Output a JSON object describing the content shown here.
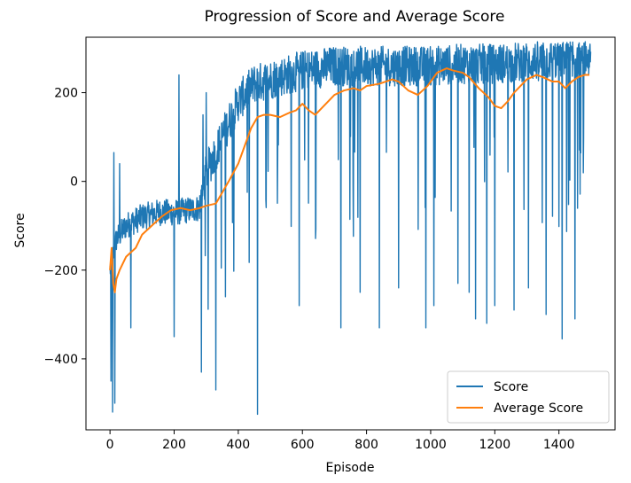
{
  "chart_data": {
    "type": "line",
    "title": "Progression of Score and Average Score",
    "xlabel": "Episode",
    "ylabel": "Score",
    "xlim": [
      -75,
      1575
    ],
    "ylim": [
      -560,
      325
    ],
    "xticks": [
      0,
      200,
      400,
      600,
      800,
      1000,
      1200,
      1400
    ],
    "yticks": [
      -400,
      -200,
      0,
      200
    ],
    "legend_placement": "lower-right",
    "grid": false,
    "episodes": 1500,
    "series": [
      {
        "name": "Score",
        "color": "#1f77b4",
        "kind": "noisy-episode-scores",
        "trend_points": [
          [
            0,
            -200
          ],
          [
            20,
            -130
          ],
          [
            50,
            -100
          ],
          [
            100,
            -80
          ],
          [
            150,
            -70
          ],
          [
            200,
            -70
          ],
          [
            280,
            -60
          ],
          [
            300,
            20
          ],
          [
            350,
            100
          ],
          [
            400,
            180
          ],
          [
            450,
            220
          ],
          [
            500,
            230
          ],
          [
            600,
            250
          ],
          [
            700,
            260
          ],
          [
            800,
            260
          ],
          [
            900,
            260
          ],
          [
            1000,
            260
          ],
          [
            1100,
            265
          ],
          [
            1200,
            265
          ],
          [
            1300,
            270
          ],
          [
            1400,
            275
          ],
          [
            1500,
            280
          ]
        ],
        "dips": [
          [
            3,
            -450
          ],
          [
            8,
            -520
          ],
          [
            12,
            -540
          ],
          [
            15,
            -500
          ],
          [
            30,
            -300
          ],
          [
            65,
            -330
          ],
          [
            200,
            -350
          ],
          [
            215,
            -395
          ],
          [
            285,
            -430
          ],
          [
            300,
            -410
          ],
          [
            330,
            -470
          ],
          [
            360,
            -260
          ],
          [
            460,
            -525
          ],
          [
            590,
            -280
          ],
          [
            720,
            -330
          ],
          [
            780,
            -250
          ],
          [
            840,
            -330
          ],
          [
            900,
            -240
          ],
          [
            985,
            -330
          ],
          [
            1010,
            -280
          ],
          [
            1085,
            -230
          ],
          [
            1120,
            -250
          ],
          [
            1140,
            -310
          ],
          [
            1175,
            -320
          ],
          [
            1200,
            -280
          ],
          [
            1260,
            -290
          ],
          [
            1305,
            -240
          ],
          [
            1360,
            -300
          ],
          [
            1410,
            -355
          ],
          [
            1450,
            -310
          ]
        ],
        "spikes": [
          [
            12,
            65
          ],
          [
            30,
            40
          ],
          [
            215,
            240
          ],
          [
            290,
            150
          ],
          [
            300,
            200
          ]
        ]
      },
      {
        "name": "Average Score",
        "color": "#ff7f0e",
        "x": [
          0,
          5,
          10,
          15,
          20,
          30,
          50,
          80,
          100,
          130,
          160,
          190,
          220,
          250,
          280,
          300,
          330,
          350,
          370,
          400,
          420,
          440,
          460,
          480,
          500,
          530,
          560,
          580,
          600,
          620,
          640,
          660,
          680,
          700,
          730,
          760,
          780,
          800,
          840,
          880,
          900,
          930,
          960,
          990,
          1020,
          1050,
          1070,
          1100,
          1120,
          1150,
          1180,
          1200,
          1220,
          1240,
          1260,
          1280,
          1300,
          1330,
          1350,
          1380,
          1400,
          1420,
          1440,
          1460,
          1480,
          1495
        ],
        "values": [
          -200,
          -150,
          -230,
          -250,
          -220,
          -200,
          -170,
          -150,
          -120,
          -100,
          -80,
          -65,
          -60,
          -65,
          -60,
          -55,
          -50,
          -25,
          0,
          40,
          80,
          120,
          145,
          150,
          150,
          145,
          155,
          160,
          175,
          160,
          150,
          165,
          180,
          195,
          205,
          210,
          205,
          215,
          220,
          230,
          225,
          205,
          195,
          215,
          245,
          255,
          250,
          245,
          235,
          210,
          190,
          170,
          165,
          180,
          200,
          215,
          230,
          240,
          235,
          225,
          225,
          210,
          225,
          235,
          240,
          240
        ]
      }
    ]
  }
}
